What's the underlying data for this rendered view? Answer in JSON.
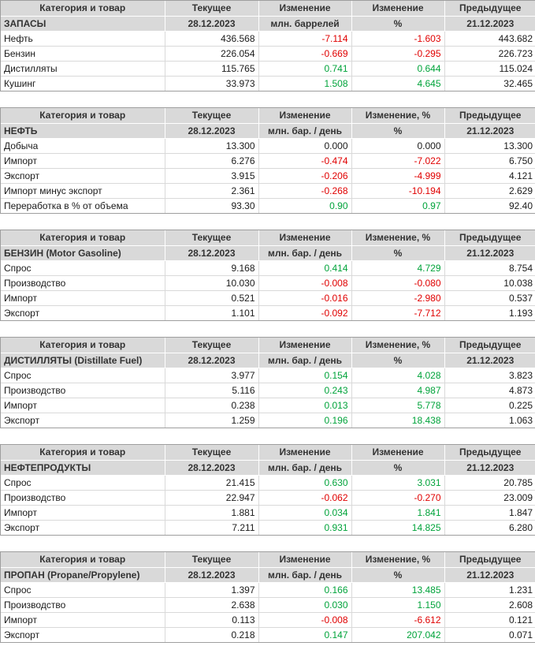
{
  "colors": {
    "header_background": "#d9d9d9",
    "positive_change": "#00a33a",
    "negative_change": "#e00000",
    "text": "#1a1a1a"
  },
  "tables": [
    {
      "name": "inventories-table",
      "columns": [
        "Категория и товар",
        "Текущее",
        "Изменение",
        "Изменение",
        "Предыдущее"
      ],
      "subheader": [
        "ЗАПАСЫ",
        "28.12.2023",
        "млн. баррелей",
        "%",
        "21.12.2023"
      ],
      "rows": [
        {
          "label": "Нефть",
          "current": "436.568",
          "change": "-7.114",
          "change_pct": "-1.603",
          "previous": "443.682"
        },
        {
          "label": "Бензин",
          "current": "226.054",
          "change": "-0.669",
          "change_pct": "-0.295",
          "previous": "226.723"
        },
        {
          "label": "Дистилляты",
          "current": "115.765",
          "change": "0.741",
          "change_pct": "0.644",
          "previous": "115.024"
        },
        {
          "label": "Кушинг",
          "current": "33.973",
          "change": "1.508",
          "change_pct": "4.645",
          "previous": "32.465"
        }
      ]
    },
    {
      "name": "crude-oil-table",
      "columns": [
        "Категория и товар",
        "Текущее",
        "Изменение",
        "Изменение, %",
        "Предыдущее"
      ],
      "subheader": [
        "НЕФТЬ",
        "28.12.2023",
        "млн. бар. / день",
        "%",
        "21.12.2023"
      ],
      "rows": [
        {
          "label": "Добыча",
          "current": "13.300",
          "change": "0.000",
          "change_pct": "0.000",
          "previous": "13.300"
        },
        {
          "label": "Импорт",
          "current": "6.276",
          "change": "-0.474",
          "change_pct": "-7.022",
          "previous": "6.750"
        },
        {
          "label": "Экспорт",
          "current": "3.915",
          "change": "-0.206",
          "change_pct": "-4.999",
          "previous": "4.121"
        },
        {
          "label": "Импорт минус экспорт",
          "current": "2.361",
          "change": "-0.268",
          "change_pct": "-10.194",
          "previous": "2.629"
        },
        {
          "label": "Переработка в % от объема",
          "current": "93.30",
          "change": "0.90",
          "change_pct": "0.97",
          "previous": "92.40"
        }
      ]
    },
    {
      "name": "gasoline-table",
      "columns": [
        "Категория и товар",
        "Текущее",
        "Изменение",
        "Изменение, %",
        "Предыдущее"
      ],
      "subheader": [
        "БЕНЗИН (Motor Gasoline)",
        "28.12.2023",
        "млн. бар. / день",
        "%",
        "21.12.2023"
      ],
      "rows": [
        {
          "label": "Спрос",
          "current": "9.168",
          "change": "0.414",
          "change_pct": "4.729",
          "previous": "8.754"
        },
        {
          "label": "Производство",
          "current": "10.030",
          "change": "-0.008",
          "change_pct": "-0.080",
          "previous": "10.038"
        },
        {
          "label": "Импорт",
          "current": "0.521",
          "change": "-0.016",
          "change_pct": "-2.980",
          "previous": "0.537"
        },
        {
          "label": "Экспорт",
          "current": "1.101",
          "change": "-0.092",
          "change_pct": "-7.712",
          "previous": "1.193"
        }
      ]
    },
    {
      "name": "distillate-table",
      "columns": [
        "Категория и товар",
        "Текущее",
        "Изменение",
        "Изменение, %",
        "Предыдущее"
      ],
      "subheader": [
        "ДИСТИЛЛЯТЫ (Distillate Fuel)",
        "28.12.2023",
        "млн. бар. / день",
        "%",
        "21.12.2023"
      ],
      "rows": [
        {
          "label": "Спрос",
          "current": "3.977",
          "change": "0.154",
          "change_pct": "4.028",
          "previous": "3.823"
        },
        {
          "label": "Производство",
          "current": "5.116",
          "change": "0.243",
          "change_pct": "4.987",
          "previous": "4.873"
        },
        {
          "label": "Импорт",
          "current": "0.238",
          "change": "0.013",
          "change_pct": "5.778",
          "previous": "0.225"
        },
        {
          "label": "Экспорт",
          "current": "1.259",
          "change": "0.196",
          "change_pct": "18.438",
          "previous": "1.063"
        }
      ]
    },
    {
      "name": "petroleum-products-table",
      "columns": [
        "Категория и товар",
        "Текущее",
        "Изменение",
        "Изменение",
        "Предыдущее"
      ],
      "subheader": [
        "НЕФТЕПРОДУКТЫ",
        "28.12.2023",
        "млн. бар. / день",
        "%",
        "21.12.2023"
      ],
      "rows": [
        {
          "label": "Спрос",
          "current": "21.415",
          "change": "0.630",
          "change_pct": "3.031",
          "previous": "20.785"
        },
        {
          "label": "Производство",
          "current": "22.947",
          "change": "-0.062",
          "change_pct": "-0.270",
          "previous": "23.009"
        },
        {
          "label": "Импорт",
          "current": "1.881",
          "change": "0.034",
          "change_pct": "1.841",
          "previous": "1.847"
        },
        {
          "label": "Экспорт",
          "current": "7.211",
          "change": "0.931",
          "change_pct": "14.825",
          "previous": "6.280"
        }
      ]
    },
    {
      "name": "propane-table",
      "columns": [
        "Категория и товар",
        "Текущее",
        "Изменение",
        "Изменение, %",
        "Предыдущее"
      ],
      "subheader": [
        "ПРОПАН (Propane/Propylene)",
        "28.12.2023",
        "млн. бар. / день",
        "%",
        "21.12.2023"
      ],
      "rows": [
        {
          "label": "Спрос",
          "current": "1.397",
          "change": "0.166",
          "change_pct": "13.485",
          "previous": "1.231"
        },
        {
          "label": "Производство",
          "current": "2.638",
          "change": "0.030",
          "change_pct": "1.150",
          "previous": "2.608"
        },
        {
          "label": "Импорт",
          "current": "0.113",
          "change": "-0.008",
          "change_pct": "-6.612",
          "previous": "0.121"
        },
        {
          "label": "Экспорт",
          "current": "0.218",
          "change": "0.147",
          "change_pct": "207.042",
          "previous": "0.071"
        }
      ]
    }
  ]
}
